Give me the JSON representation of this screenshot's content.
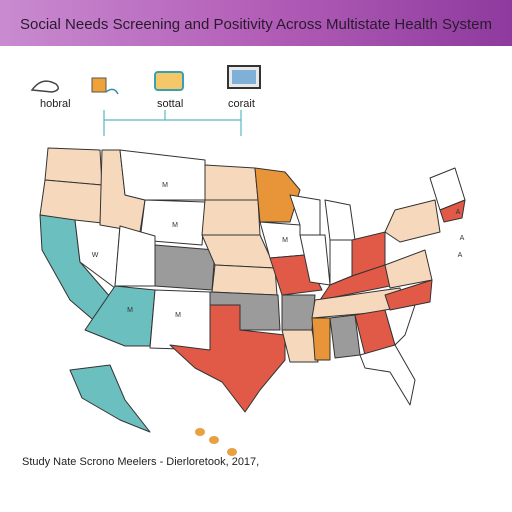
{
  "header": {
    "title": "Social Needs Screening and Positivity Across Multistate Health System"
  },
  "legend": {
    "items": [
      {
        "label": "hobral"
      },
      {
        "label": "sottal"
      },
      {
        "label": "corait"
      }
    ]
  },
  "map": {
    "state_labels": [
      "W",
      "M",
      "M",
      "M",
      "M",
      "M",
      "A",
      "A",
      "A"
    ]
  },
  "footer": {
    "text": "Study Nate Scrono Meelers - Dierloretook, 2017,"
  }
}
